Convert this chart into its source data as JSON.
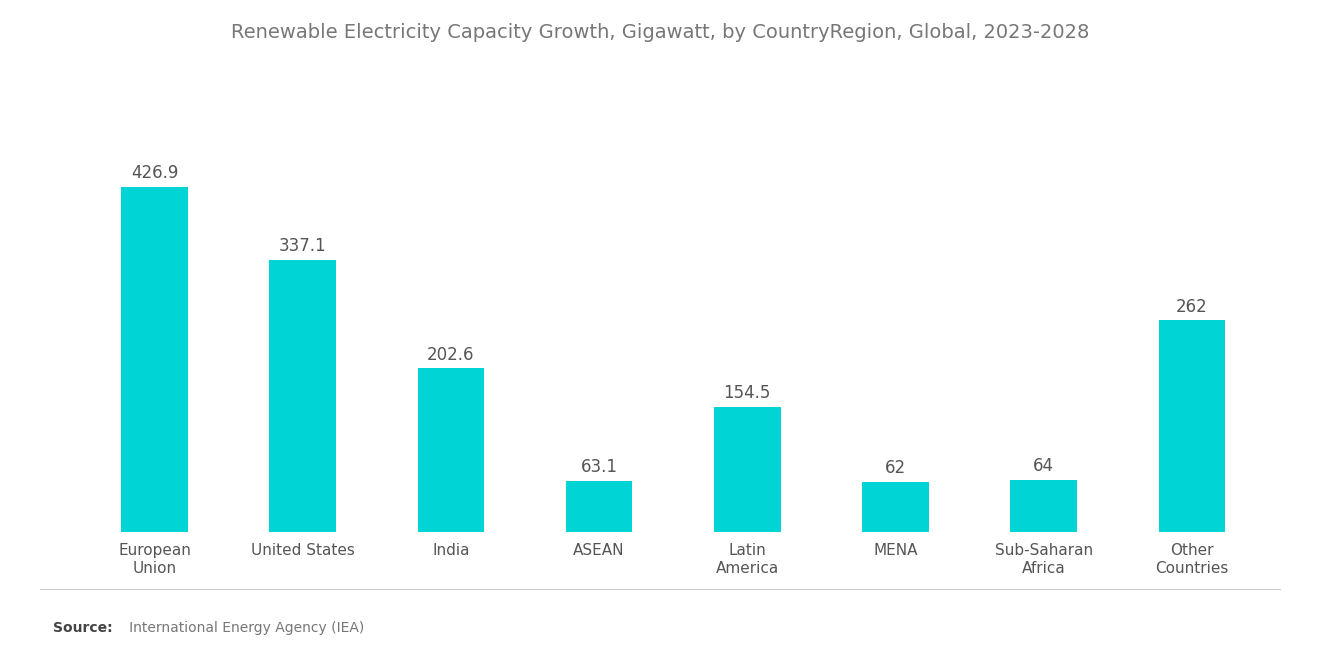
{
  "title": "Renewable Electricity Capacity Growth, Gigawatt, by CountryRegion, Global, 2023-2028",
  "categories": [
    "European\nUnion",
    "United States",
    "India",
    "ASEAN",
    "Latin\nAmerica",
    "MENA",
    "Sub-Saharan\nAfrica",
    "Other\nCountries"
  ],
  "values": [
    426.9,
    337.1,
    202.6,
    63.1,
    154.5,
    62,
    64,
    262
  ],
  "bar_color": "#00D4D4",
  "value_color": "#555555",
  "title_color": "#777777",
  "label_color": "#555555",
  "background_color": "#ffffff",
  "source_label_bold": "Source:",
  "source_label_rest": "   International Energy Agency (IEA)",
  "title_fontsize": 14,
  "value_fontsize": 12,
  "label_fontsize": 11,
  "source_fontsize": 10,
  "bar_width": 0.45,
  "ylim": [
    0,
    560
  ]
}
